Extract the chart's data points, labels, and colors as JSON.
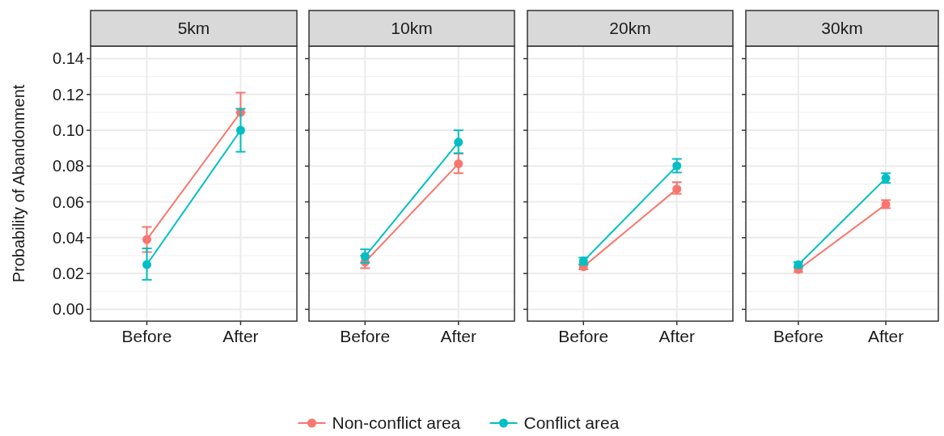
{
  "chart_data": [
    {
      "type": "line",
      "title": "5km",
      "ylabel": "Probability of Abandonment",
      "categories": [
        "Before",
        "After"
      ],
      "ylim": [
        -0.0066,
        0.147
      ],
      "yticks": [
        {
          "value": 0,
          "label": "0.00"
        },
        {
          "value": 0.02,
          "label": "0.02"
        },
        {
          "value": 0.04,
          "label": "0.04"
        },
        {
          "value": 0.06,
          "label": "0.06"
        },
        {
          "value": 0.08,
          "label": "0.08"
        },
        {
          "value": 0.1,
          "label": "0.10"
        },
        {
          "value": 0.12,
          "label": "0.12"
        },
        {
          "value": 0.14,
          "label": "0.14"
        }
      ],
      "grid": true,
      "marker": "circle",
      "legend": "bottom",
      "series": [
        {
          "name": "Non-conflict area",
          "color": "#f8766d",
          "values": [
            0.039,
            0.11
          ],
          "errors": [
            [
              0.032,
              0.046
            ],
            [
              0.11,
              0.121
            ]
          ]
        },
        {
          "name": "Conflict area",
          "color": "#00bfc4",
          "values": [
            0.025,
            0.1
          ],
          "errors": [
            [
              0.0165,
              0.034
            ],
            [
              0.088,
              0.112
            ]
          ]
        }
      ]
    },
    {
      "type": "line",
      "title": "10km",
      "categories": [
        "Before",
        "After"
      ],
      "ylim": [
        -0.0066,
        0.147
      ],
      "yticks": [
        0,
        0.02,
        0.04,
        0.06,
        0.08,
        0.1,
        0.12,
        0.14
      ],
      "grid": true,
      "marker": "circle",
      "tick_labels": "x",
      "series": [
        {
          "color": "#f8766d",
          "values": [
            0.0264,
            0.0813
          ],
          "errors": [
            [
              0.023,
              0.03
            ],
            [
              0.076,
              0.087
            ]
          ]
        },
        {
          "color": "#00bfc4",
          "values": [
            0.0295,
            0.0933
          ],
          "errors": [
            [
              0.026,
              0.0335
            ],
            [
              0.0872,
              0.1
            ]
          ]
        }
      ]
    },
    {
      "type": "line",
      "title": "20km",
      "categories": [
        "Before",
        "After"
      ],
      "ylim": [
        -0.0066,
        0.147
      ],
      "yticks": [
        0,
        0.02,
        0.04,
        0.06,
        0.08,
        0.1,
        0.12,
        0.14
      ],
      "grid": true,
      "marker": "circle",
      "tick_labels": "x",
      "series": [
        {
          "color": "#f8766d",
          "values": [
            0.0238,
            0.0672
          ],
          "errors": [
            [
              0.0223,
              0.0253
            ],
            [
              0.0645,
              0.071
            ]
          ]
        },
        {
          "color": "#00bfc4",
          "values": [
            0.0269,
            0.0801
          ],
          "errors": [
            [
              0.0249,
              0.0289
            ],
            [
              0.0764,
              0.084
            ]
          ]
        }
      ]
    },
    {
      "type": "line",
      "title": "30km",
      "categories": [
        "Before",
        "After"
      ],
      "ylim": [
        -0.0066,
        0.147
      ],
      "yticks": [
        0,
        0.02,
        0.04,
        0.06,
        0.08,
        0.1,
        0.12,
        0.14
      ],
      "grid": true,
      "marker": "circle",
      "tick_labels": "x",
      "series": [
        {
          "color": "#f8766d",
          "values": [
            0.0223,
            0.0586
          ],
          "errors": [
            [
              0.0208,
              0.0238
            ],
            [
              0.0565,
              0.061
            ]
          ]
        },
        {
          "color": "#00bfc4",
          "values": [
            0.0249,
            0.0732
          ],
          "errors": [
            [
              0.0234,
              0.0264
            ],
            [
              0.0706,
              0.076
            ]
          ]
        }
      ]
    }
  ]
}
